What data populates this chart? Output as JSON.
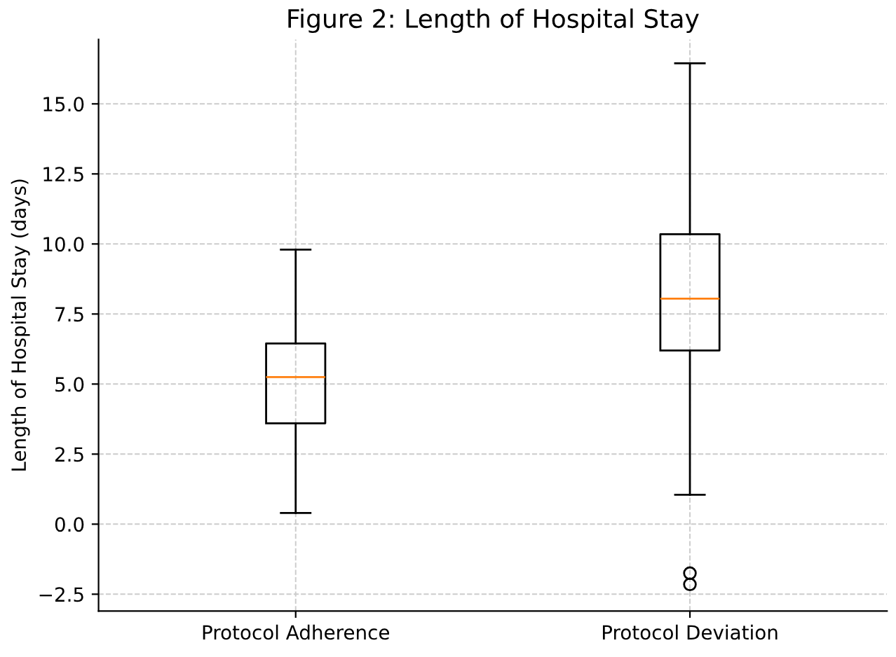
{
  "chart_data": {
    "type": "box",
    "title": "Figure 2: Length of Hospital Stay",
    "ylabel": "Length of Hospital Stay (days)",
    "categories": [
      "Protocol Adherence",
      "Protocol Deviation"
    ],
    "boxes": [
      {
        "low": 0.4,
        "q1": 3.6,
        "median": 5.25,
        "q3": 6.45,
        "high": 9.8
      },
      {
        "low": 1.05,
        "q1": 6.2,
        "median": 8.05,
        "q3": 10.35,
        "high": 16.45,
        "outliers": [
          -1.75,
          -2.15
        ]
      }
    ],
    "ylim": [
      -3.1,
      17.3
    ],
    "yticks": [
      {
        "value": -2.5,
        "label": "−2.5"
      },
      {
        "value": 0,
        "label": "0.0"
      },
      {
        "value": 2.5,
        "label": "2.5"
      },
      {
        "value": 5,
        "label": "5.0"
      },
      {
        "value": 7.5,
        "label": "7.5"
      },
      {
        "value": 10,
        "label": "10.0"
      },
      {
        "value": 12.5,
        "label": "12.5"
      },
      {
        "value": 15,
        "label": "15.0"
      }
    ],
    "grid": true
  }
}
